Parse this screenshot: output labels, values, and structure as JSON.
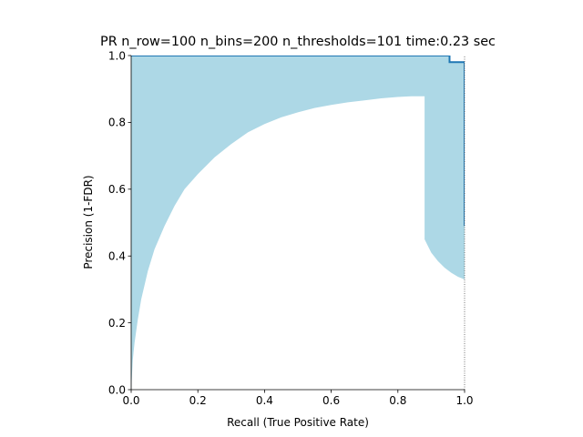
{
  "chart_data": {
    "type": "area",
    "title": "PR n_row=100 n_bins=200 n_thresholds=101 time:0.23 sec",
    "xlabel": "Recall (True Positive Rate)",
    "ylabel": "Precision (1-FDR)",
    "xlim": [
      0.0,
      1.0
    ],
    "ylim": [
      0.0,
      1.0
    ],
    "grid": false,
    "legend": "none",
    "x_ticks": [
      "0.0",
      "0.2",
      "0.4",
      "0.6",
      "0.8",
      "1.0"
    ],
    "y_ticks": [
      "0.0",
      "0.2",
      "0.4",
      "0.6",
      "0.8",
      "1.0"
    ],
    "colors": {
      "band_fill": "#add8e6",
      "curve": "#1f77b4",
      "guide": "#555555"
    },
    "band": {
      "upper": [
        [
          0.0,
          1.0
        ],
        [
          0.955,
          1.0
        ],
        [
          0.955,
          0.98
        ],
        [
          1.0,
          0.98
        ],
        [
          1.0,
          0.33
        ]
      ],
      "lower": [
        [
          0.0,
          0.0
        ],
        [
          0.005,
          0.09
        ],
        [
          0.01,
          0.14
        ],
        [
          0.02,
          0.21
        ],
        [
          0.03,
          0.27
        ],
        [
          0.05,
          0.355
        ],
        [
          0.07,
          0.42
        ],
        [
          0.1,
          0.49
        ],
        [
          0.13,
          0.55
        ],
        [
          0.16,
          0.6
        ],
        [
          0.2,
          0.645
        ],
        [
          0.25,
          0.695
        ],
        [
          0.3,
          0.735
        ],
        [
          0.35,
          0.77
        ],
        [
          0.4,
          0.795
        ],
        [
          0.45,
          0.815
        ],
        [
          0.5,
          0.83
        ],
        [
          0.55,
          0.843
        ],
        [
          0.6,
          0.852
        ],
        [
          0.65,
          0.86
        ],
        [
          0.7,
          0.866
        ],
        [
          0.75,
          0.872
        ],
        [
          0.8,
          0.876
        ],
        [
          0.84,
          0.878
        ],
        [
          0.88,
          0.878
        ],
        [
          0.88,
          0.45
        ],
        [
          0.9,
          0.41
        ],
        [
          0.92,
          0.385
        ],
        [
          0.94,
          0.365
        ],
        [
          0.96,
          0.35
        ],
        [
          0.98,
          0.338
        ],
        [
          1.0,
          0.33
        ]
      ]
    },
    "curve": [
      [
        0.0,
        1.0
      ],
      [
        0.955,
        1.0
      ],
      [
        0.955,
        0.98
      ],
      [
        1.0,
        0.98
      ],
      [
        1.0,
        0.49
      ]
    ]
  }
}
